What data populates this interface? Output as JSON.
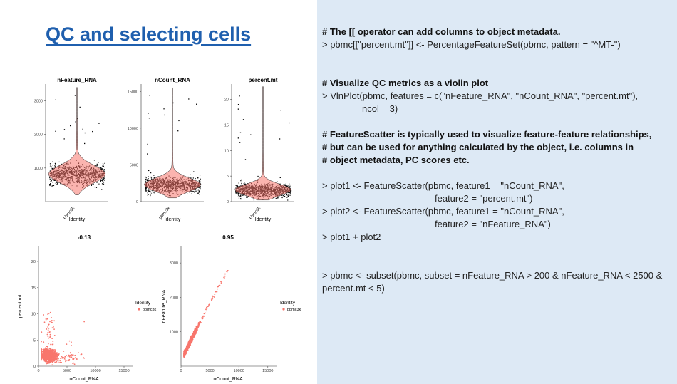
{
  "slide_title": "QC and selecting cells",
  "violin": {
    "panels": [
      {
        "title": "nFeature_RNA",
        "ticks": [
          1000,
          2000,
          3000
        ],
        "ylim": [
          0,
          3500
        ]
      },
      {
        "title": "nCount_RNA",
        "ticks": [
          0,
          5000,
          10000,
          15000
        ],
        "ylim": [
          0,
          16000
        ]
      },
      {
        "title": "percent.mt",
        "ticks": [
          0,
          5,
          10,
          15,
          20
        ],
        "ylim": [
          0,
          23
        ]
      }
    ],
    "category": "pbmc3k",
    "xlabel": "Identity"
  },
  "scatter": {
    "panels": [
      {
        "title": "-0.13",
        "xlabel": "nCount_RNA",
        "ylabel": "percent.mt",
        "xticks": [
          0,
          5000,
          10000,
          15000
        ],
        "yticks": [
          0,
          5,
          10,
          15,
          20
        ],
        "xlim": [
          0,
          16500
        ],
        "ylim": [
          0,
          23
        ]
      },
      {
        "title": "0.95",
        "xlabel": "nCount_RNA",
        "ylabel": "nFeature_RNA",
        "xticks": [
          0,
          5000,
          10000,
          15000
        ],
        "yticks": [
          1000,
          2000,
          3000
        ],
        "xlim": [
          0,
          16500
        ],
        "ylim": [
          0,
          3500
        ]
      }
    ],
    "legend_title": "Identity",
    "legend_item": "pbmc3k",
    "point_color": "#f8766d"
  },
  "violin_fill": "#f8766d",
  "code": {
    "c1": "# The [[ operator can add columns to object metadata.",
    "l1": "> pbmc[[\"percent.mt\"]] <- PercentageFeatureSet(pbmc, pattern = \"^MT-\")",
    "c2": "# Visualize QC metrics as a violin plot",
    "l2a": "> VlnPlot(pbmc, features = c(\"nFeature_RNA\", \"nCount_RNA\", \"percent.mt\"),",
    "l2b": "ncol = 3)",
    "c3a": "# FeatureScatter is typically used to visualize feature-feature relationships,",
    "c3b": "# but can be used for anything calculated by the object, i.e. columns in",
    "c3c": "# object metadata, PC scores etc.",
    "l4a": "> plot1 <- FeatureScatter(pbmc, feature1 = \"nCount_RNA\",",
    "l4b": "feature2 = \"percent.mt\")",
    "l5a": "> plot2 <- FeatureScatter(pbmc, feature1 = \"nCount_RNA\",",
    "l5b": "feature2 = \"nFeature_RNA\")",
    "l6": "> plot1 + plot2",
    "l7": "> pbmc <- subset(pbmc, subset = nFeature_RNA > 200 & nFeature_RNA < 2500 & percent.mt < 5)"
  }
}
